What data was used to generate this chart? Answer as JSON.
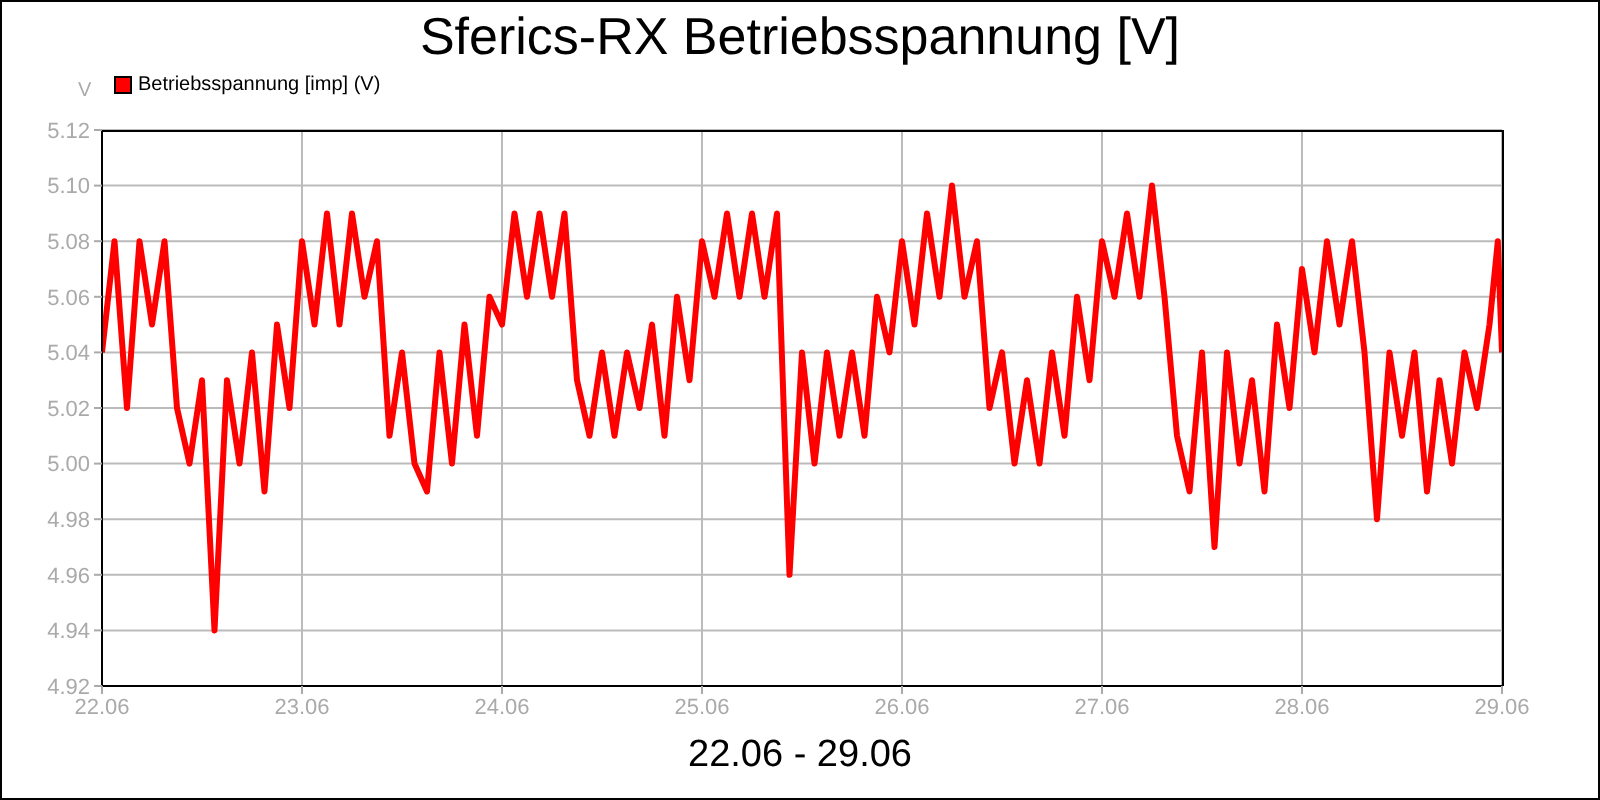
{
  "chart_data": {
    "type": "line",
    "title": "Sferics-RX Betriebsspannung [V]",
    "xlabel": "22.06 - 29.06",
    "ylabel": "V",
    "legend": "top left",
    "grid": true,
    "marker": "none",
    "line_style": "solid",
    "xlim": [
      "--06-22",
      "--06-29"
    ],
    "xticks": [
      {
        "value": "--06-22",
        "label": "22.06"
      },
      {
        "value": "--06-23",
        "label": "23.06"
      },
      {
        "value": "--06-24",
        "label": "24.06"
      },
      {
        "value": "--06-25",
        "label": "25.06"
      },
      {
        "value": "--06-26",
        "label": "26.06"
      },
      {
        "value": "--06-27",
        "label": "27.06"
      },
      {
        "value": "--06-28",
        "label": "28.06"
      },
      {
        "value": "--06-29",
        "label": "29.06"
      }
    ],
    "ylim": [
      4.92,
      5.12
    ],
    "yticks": [
      4.92,
      4.94,
      4.96,
      4.98,
      {
        "value": 5.0,
        "label": "5.00"
      },
      5.02,
      5.04,
      5.06,
      5.08,
      {
        "value": 5.1,
        "label": "5.10"
      },
      5.12
    ],
    "x": [
      "--06-22T00:00",
      "--06-22T01:30",
      "--06-22T03:00",
      "--06-22T04:30",
      "--06-22T06:00",
      "--06-22T07:30",
      "--06-22T09:00",
      "--06-22T10:30",
      "--06-22T12:00",
      "--06-22T13:30",
      "--06-22T15:00",
      "--06-22T16:30",
      "--06-22T18:00",
      "--06-22T19:30",
      "--06-22T21:00",
      "--06-22T22:30",
      "--06-23T00:00",
      "--06-23T01:30",
      "--06-23T03:00",
      "--06-23T04:30",
      "--06-23T06:00",
      "--06-23T07:30",
      "--06-23T09:00",
      "--06-23T10:30",
      "--06-23T12:00",
      "--06-23T13:30",
      "--06-23T15:00",
      "--06-23T16:30",
      "--06-23T18:00",
      "--06-23T19:30",
      "--06-23T21:00",
      "--06-23T22:30",
      "--06-24T00:00",
      "--06-24T01:30",
      "--06-24T03:00",
      "--06-24T04:30",
      "--06-24T06:00",
      "--06-24T07:30",
      "--06-24T09:00",
      "--06-24T10:30",
      "--06-24T12:00",
      "--06-24T13:30",
      "--06-24T15:00",
      "--06-24T16:30",
      "--06-24T18:00",
      "--06-24T19:30",
      "--06-24T21:00",
      "--06-24T22:30",
      "--06-25T00:00",
      "--06-25T01:30",
      "--06-25T03:00",
      "--06-25T04:30",
      "--06-25T06:00",
      "--06-25T07:30",
      "--06-25T09:00",
      "--06-25T10:30",
      "--06-25T12:00",
      "--06-25T13:30",
      "--06-25T15:00",
      "--06-25T16:30",
      "--06-25T18:00",
      "--06-25T19:30",
      "--06-25T21:00",
      "--06-25T22:30",
      "--06-26T00:00",
      "--06-26T01:30",
      "--06-26T03:00",
      "--06-26T04:30",
      "--06-26T06:00",
      "--06-26T07:30",
      "--06-26T09:00",
      "--06-26T10:30",
      "--06-26T12:00",
      "--06-26T13:30",
      "--06-26T15:00",
      "--06-26T16:30",
      "--06-26T18:00",
      "--06-26T19:30",
      "--06-26T21:00",
      "--06-26T22:30",
      "--06-27T00:00",
      "--06-27T01:30",
      "--06-27T03:00",
      "--06-27T04:30",
      "--06-27T06:00",
      "--06-27T07:30",
      "--06-27T09:00",
      "--06-27T10:30",
      "--06-27T12:00",
      "--06-27T13:30",
      "--06-27T15:00",
      "--06-27T16:30",
      "--06-27T18:00",
      "--06-27T19:30",
      "--06-27T21:00",
      "--06-27T22:30",
      "--06-28T00:00",
      "--06-28T01:30",
      "--06-28T03:00",
      "--06-28T04:30",
      "--06-28T06:00",
      "--06-28T07:30",
      "--06-28T09:00",
      "--06-28T10:30",
      "--06-28T12:00",
      "--06-28T13:30",
      "--06-28T15:00",
      "--06-28T16:30",
      "--06-28T18:00",
      "--06-28T19:30",
      "--06-28T21:00",
      "--06-28T22:30",
      "--06-28T23:30",
      "--06-29T00:00"
    ],
    "series": [
      {
        "name": "Betriebsspannung [imp] (V)",
        "color": "#ff0000",
        "values": [
          5.04,
          5.08,
          5.02,
          5.08,
          5.05,
          5.08,
          5.02,
          5.0,
          5.03,
          4.94,
          5.03,
          5.0,
          5.04,
          4.99,
          5.05,
          5.02,
          5.08,
          5.05,
          5.09,
          5.05,
          5.09,
          5.06,
          5.08,
          5.01,
          5.04,
          5.0,
          4.99,
          5.04,
          5.0,
          5.05,
          5.01,
          5.06,
          5.05,
          5.09,
          5.06,
          5.09,
          5.06,
          5.09,
          5.03,
          5.01,
          5.04,
          5.01,
          5.04,
          5.02,
          5.05,
          5.01,
          5.06,
          5.03,
          5.08,
          5.06,
          5.09,
          5.06,
          5.09,
          5.06,
          5.09,
          4.96,
          5.04,
          5.0,
          5.04,
          5.01,
          5.04,
          5.01,
          5.06,
          5.04,
          5.08,
          5.05,
          5.09,
          5.06,
          5.1,
          5.06,
          5.08,
          5.02,
          5.04,
          5.0,
          5.03,
          5.0,
          5.04,
          5.01,
          5.06,
          5.03,
          5.08,
          5.06,
          5.09,
          5.06,
          5.1,
          5.06,
          5.01,
          4.99,
          5.04,
          4.97,
          5.04,
          5.0,
          5.03,
          4.99,
          5.05,
          5.02,
          5.07,
          5.04,
          5.08,
          5.05,
          5.08,
          5.04,
          4.98,
          5.04,
          5.01,
          5.04,
          4.99,
          5.03,
          5.0,
          5.04,
          5.02,
          5.05,
          5.08,
          5.04
        ]
      }
    ]
  }
}
